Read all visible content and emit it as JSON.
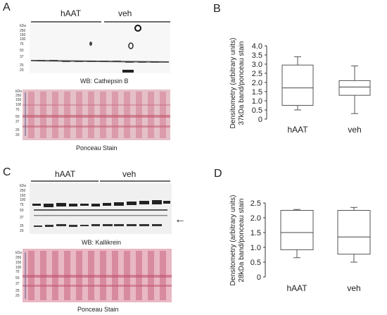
{
  "panels": [
    {
      "letter": "A",
      "groups": [
        "hAAT",
        "veh"
      ],
      "kda_title": "kDa",
      "kda_markers": [
        "250",
        "150",
        "100",
        "75",
        "50",
        "37",
        "25",
        "20"
      ],
      "blot_caption": "WB:  Cathepsin B",
      "ponceau_kda_markers": [
        "250",
        "150",
        "100",
        "75",
        "50",
        "37",
        "25",
        "20"
      ],
      "ponceau_caption": "Ponceau Stain"
    },
    {
      "letter": "C",
      "groups": [
        "hAAT",
        "veh"
      ],
      "kda_title": "kDa",
      "kda_markers": [
        "250",
        "150",
        "100",
        "75",
        "50",
        "37",
        "25",
        "20"
      ],
      "blot_caption": "WB:  Kallikrein",
      "ponceau_kda_markers": [
        "250",
        "150",
        "100",
        "75",
        "50",
        "37",
        "25",
        "20"
      ],
      "ponceau_caption": "Ponceau Stain",
      "arrow_glyph": "←"
    }
  ],
  "chart_data": [
    {
      "panel_letter": "B",
      "type": "box",
      "categories": [
        "hAAT",
        "veh"
      ],
      "ylabel_line1": "Densitometry (arbitrary units)",
      "ylabel_line2": "37kDa band/ponceau stain",
      "yticks": [
        "0",
        "0.5",
        "1.0",
        "1.5",
        "2.0",
        "2.5",
        "3.0",
        "3.5",
        "4.0"
      ],
      "ylim": [
        0,
        4.0
      ],
      "boxes": [
        {
          "category": "hAAT",
          "min": 0.5,
          "q1": 0.75,
          "median": 1.7,
          "q3": 2.95,
          "max": 3.4
        },
        {
          "category": "veh",
          "min": 0.3,
          "q1": 1.3,
          "median": 1.75,
          "q3": 2.1,
          "max": 2.9
        }
      ]
    },
    {
      "panel_letter": "D",
      "type": "box",
      "categories": [
        "hAAT",
        "veh"
      ],
      "ylabel_line1": "Densitometry (arbitrary units)",
      "ylabel_line2": "28kDa band/ponceau stain",
      "yticks": [
        "0",
        "0.5",
        "1.0",
        "1.5",
        "2.0",
        "2.5"
      ],
      "ylim": [
        0,
        2.5
      ],
      "boxes": [
        {
          "category": "hAAT",
          "min": 0.65,
          "q1": 0.92,
          "median": 1.5,
          "q3": 2.25,
          "max": 2.28
        },
        {
          "category": "veh",
          "min": 0.5,
          "q1": 0.77,
          "median": 1.35,
          "q3": 2.25,
          "max": 2.35
        }
      ]
    }
  ]
}
